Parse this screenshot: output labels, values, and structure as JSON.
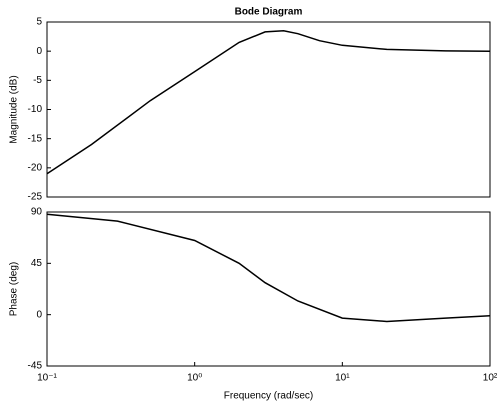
{
  "chart_data": [
    {
      "type": "line",
      "title": "Bode Diagram",
      "ylabel": "Magnitude (dB)",
      "xscale": "log",
      "xlim": [
        0.1,
        100
      ],
      "x": [
        0.1,
        0.2,
        0.5,
        1,
        2,
        3,
        4,
        5,
        7,
        10,
        20,
        50,
        100
      ],
      "values": [
        -21,
        -16,
        -8.5,
        -3.5,
        1.5,
        3.3,
        3.5,
        3,
        1.8,
        1,
        0.3,
        0.05,
        0
      ],
      "color": "#000000",
      "ylim": [
        -25,
        5
      ],
      "yticks": [
        5,
        0,
        -5,
        -10,
        -15,
        -20,
        -25
      ]
    },
    {
      "type": "line",
      "xlabel": "Frequency (rad/sec)",
      "ylabel": "Phase (deg)",
      "xscale": "log",
      "xlim": [
        0.1,
        100
      ],
      "xticks": [
        {
          "value": 0.1,
          "label": "10⁻¹"
        },
        {
          "value": 1,
          "label": "10⁰"
        },
        {
          "value": 10,
          "label": "10¹"
        },
        {
          "value": 100,
          "label": "10²"
        }
      ],
      "x": [
        0.1,
        0.3,
        1,
        2,
        3,
        5,
        10,
        20,
        50,
        100
      ],
      "values": [
        88,
        82,
        65,
        45,
        28,
        12,
        -3,
        -6,
        -3,
        -1
      ],
      "color": "#000000",
      "ylim": [
        -45,
        90
      ],
      "yticks": [
        90,
        45,
        0,
        -45
      ]
    }
  ]
}
